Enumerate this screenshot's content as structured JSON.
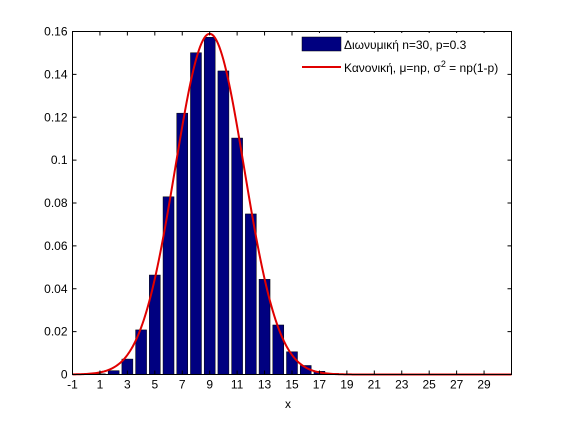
{
  "chart_data": {
    "type": "bar",
    "xlabel": "x",
    "ylabel": "",
    "title": "",
    "xlim": [
      -1,
      31
    ],
    "ylim": [
      0,
      0.16
    ],
    "x_ticks": [
      -1,
      1,
      3,
      5,
      7,
      9,
      11,
      13,
      15,
      17,
      19,
      21,
      23,
      25,
      27,
      29
    ],
    "y_ticks": [
      0,
      0.02,
      0.04,
      0.06,
      0.08,
      0.1,
      0.12,
      0.14,
      0.16
    ],
    "x_tick_labels": [
      "-1",
      "1",
      "3",
      "5",
      "7",
      "9",
      "11",
      "13",
      "15",
      "17",
      "19",
      "21",
      "23",
      "25",
      "27",
      "29"
    ],
    "y_tick_labels": [
      "0",
      "0.02",
      "0.04",
      "0.06",
      "0.08",
      "0.1",
      "0.12",
      "0.14",
      "0.16"
    ],
    "grid": false,
    "legend_position": "top-right",
    "bar_color": "#000080",
    "line_color": "#e00000",
    "series": [
      {
        "name": "Διωνυμική n=30, p=0.3",
        "kind": "bar",
        "x": [
          0,
          1,
          2,
          3,
          4,
          5,
          6,
          7,
          8,
          9,
          10,
          11,
          12,
          13,
          14,
          15,
          16,
          17,
          18,
          19,
          20,
          21,
          22,
          23,
          24,
          25,
          26,
          27,
          28,
          29,
          30
        ],
        "values": [
          0.0,
          0.0003,
          0.0018,
          0.0072,
          0.0208,
          0.0464,
          0.0829,
          0.1219,
          0.1501,
          0.1573,
          0.1416,
          0.1103,
          0.0749,
          0.0444,
          0.0231,
          0.0106,
          0.0042,
          0.0015,
          0.0005,
          0.0001,
          0.0,
          0.0,
          0.0,
          0.0,
          0.0,
          0.0,
          0.0,
          0.0,
          0.0,
          0.0,
          0.0
        ]
      },
      {
        "name_prefix": "Κανονική, μ=np, σ",
        "name_superscript": "2",
        "name_suffix": " = np(1-p)",
        "kind": "line",
        "mean": 9,
        "variance": 6.3
      }
    ]
  }
}
